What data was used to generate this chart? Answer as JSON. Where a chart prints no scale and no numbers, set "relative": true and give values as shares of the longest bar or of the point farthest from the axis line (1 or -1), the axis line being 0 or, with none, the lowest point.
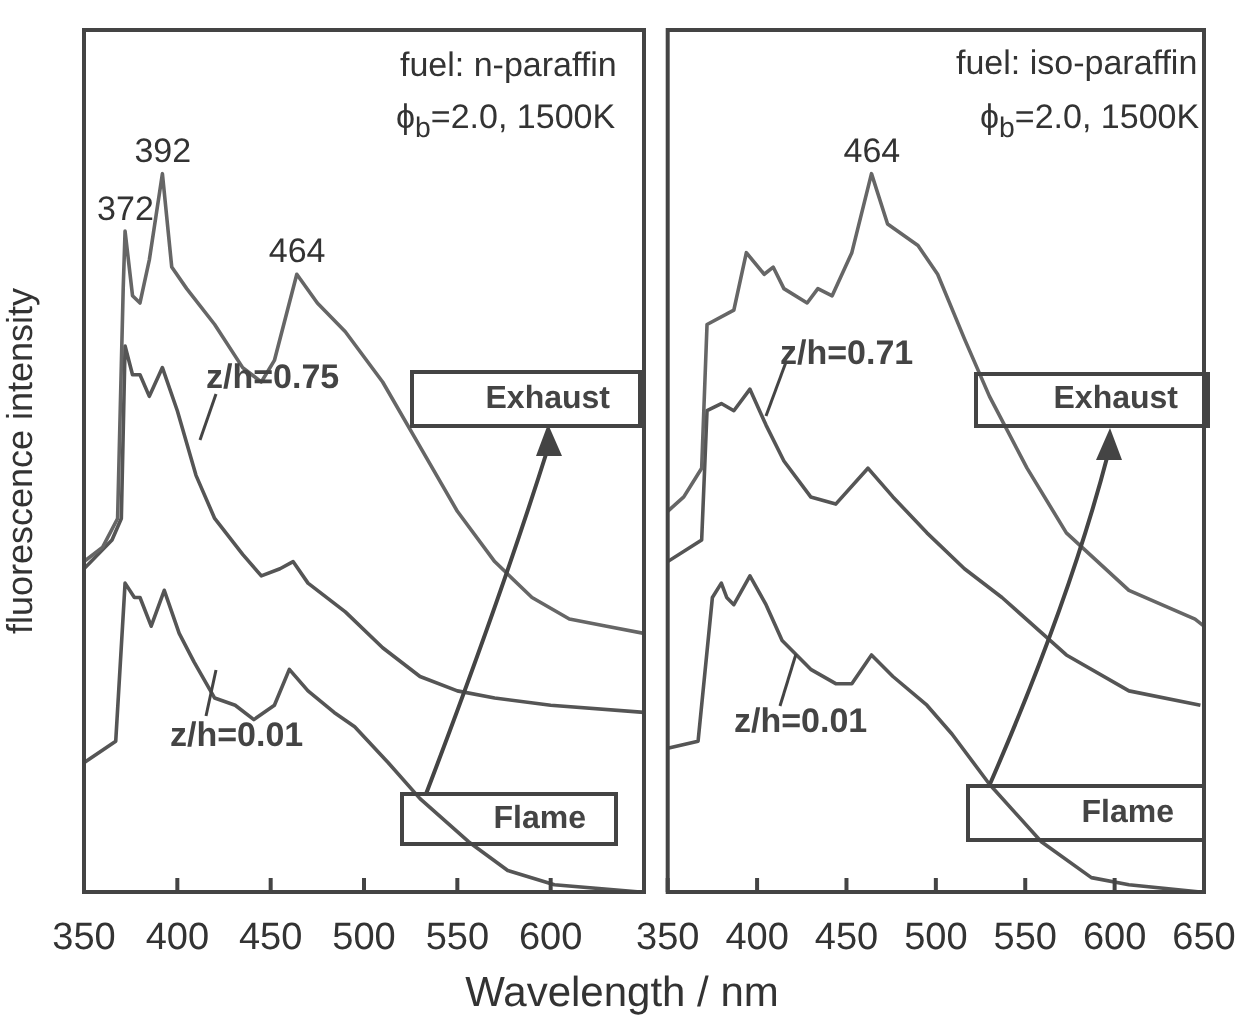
{
  "chart_data": [
    {
      "type": "line",
      "relative": true,
      "ylabel": "fluorescence intensity",
      "xlabel": "Wavelength / nm",
      "xlim": [
        350,
        650
      ],
      "xticks": [
        350,
        400,
        450,
        500,
        550,
        600,
        {
          "value": 650,
          "label": null
        }
      ],
      "annotations": [
        {
          "text": "372",
          "x": 372,
          "y": 0.92
        },
        {
          "text": "392",
          "x": 392,
          "y": 1
        },
        {
          "text": "464",
          "x": 464,
          "y": 0.86
        },
        "fuel: n-paraffin",
        "ϕ$_{b}$=2.0, 1500K",
        "z/h=0.75",
        "z/h=0.01",
        "Exhaust",
        "Flame"
      ],
      "series": [
        {
          "color": "#666666",
          "x": [
            350,
            360,
            368,
            371,
            372,
            376,
            380,
            385,
            392,
            397,
            405,
            420,
            435,
            445,
            452,
            464,
            475,
            490,
            510,
            530,
            550,
            570,
            590,
            610,
            630,
            650
          ],
          "values": [
            0.46,
            0.48,
            0.52,
            0.84,
            0.92,
            0.83,
            0.82,
            0.88,
            1,
            0.87,
            0.84,
            0.79,
            0.73,
            0.71,
            0.74,
            0.86,
            0.82,
            0.78,
            0.71,
            0.62,
            0.53,
            0.46,
            0.41,
            0.38,
            0.37,
            0.36
          ]
        },
        {
          "color": "#555555",
          "x": [
            350,
            365,
            370,
            372,
            376,
            380,
            385,
            392,
            400,
            410,
            420,
            435,
            445,
            455,
            462,
            470,
            490,
            510,
            530,
            550,
            570,
            600,
            650
          ],
          "values": [
            0.45,
            0.49,
            0.52,
            0.76,
            0.72,
            0.72,
            0.69,
            0.73,
            0.67,
            0.58,
            0.52,
            0.47,
            0.44,
            0.45,
            0.46,
            0.43,
            0.39,
            0.34,
            0.3,
            0.28,
            0.27,
            0.26,
            0.25
          ]
        },
        {
          "color": "#555555",
          "x": [
            350,
            367,
            372,
            377,
            380,
            386,
            393,
            401,
            409,
            420,
            431,
            441,
            452,
            460,
            470,
            484,
            495,
            513,
            530,
            556,
            577,
            602,
            648
          ],
          "values": [
            0.18,
            0.21,
            0.43,
            0.41,
            0.41,
            0.37,
            0.42,
            0.36,
            0.32,
            0.27,
            0.26,
            0.24,
            0.26,
            0.31,
            0.28,
            0.25,
            0.23,
            0.18,
            0.13,
            0.07,
            0.03,
            0.01,
            0
          ]
        }
      ]
    },
    {
      "type": "line",
      "relative": true,
      "xlim": [
        350,
        650
      ],
      "xticks": [
        350,
        400,
        450,
        500,
        550,
        600,
        650
      ],
      "annotations": [
        {
          "text": "464",
          "x": 464,
          "y": 1
        },
        "fuel: iso-paraffin",
        "ϕ$_{b}$=2.0, 1500K",
        "z/h=0.71",
        "z/h=0.01",
        "Exhaust",
        "Flame"
      ],
      "series": [
        {
          "color": "#666666",
          "x": [
            350,
            359,
            369,
            372,
            387,
            394,
            404,
            409,
            415,
            428,
            434,
            442,
            453,
            464,
            473,
            490,
            501,
            516,
            530,
            551,
            573,
            608,
            645,
            650
          ],
          "values": [
            0.53,
            0.55,
            0.59,
            0.79,
            0.81,
            0.89,
            0.86,
            0.87,
            0.84,
            0.82,
            0.84,
            0.83,
            0.89,
            1,
            0.93,
            0.9,
            0.86,
            0.77,
            0.69,
            0.59,
            0.5,
            0.42,
            0.38,
            0.37
          ]
        },
        {
          "color": "#555555",
          "x": [
            350,
            369,
            372,
            380,
            387,
            396,
            405,
            415,
            430,
            444,
            462,
            476,
            495,
            516,
            537,
            573,
            608,
            648
          ],
          "values": [
            0.46,
            0.49,
            0.67,
            0.68,
            0.67,
            0.7,
            0.65,
            0.6,
            0.55,
            0.54,
            0.59,
            0.55,
            0.5,
            0.45,
            0.41,
            0.33,
            0.28,
            0.26
          ]
        },
        {
          "color": "#555555",
          "x": [
            350,
            367,
            375,
            380,
            383,
            387,
            396,
            405,
            414,
            430,
            444,
            453,
            464,
            476,
            495,
            509,
            530,
            559,
            587,
            608,
            648
          ],
          "values": [
            0.2,
            0.21,
            0.41,
            0.43,
            0.41,
            0.4,
            0.44,
            0.4,
            0.35,
            0.31,
            0.29,
            0.29,
            0.33,
            0.3,
            0.26,
            0.22,
            0.15,
            0.07,
            0.02,
            0.01,
            0
          ]
        }
      ]
    }
  ]
}
